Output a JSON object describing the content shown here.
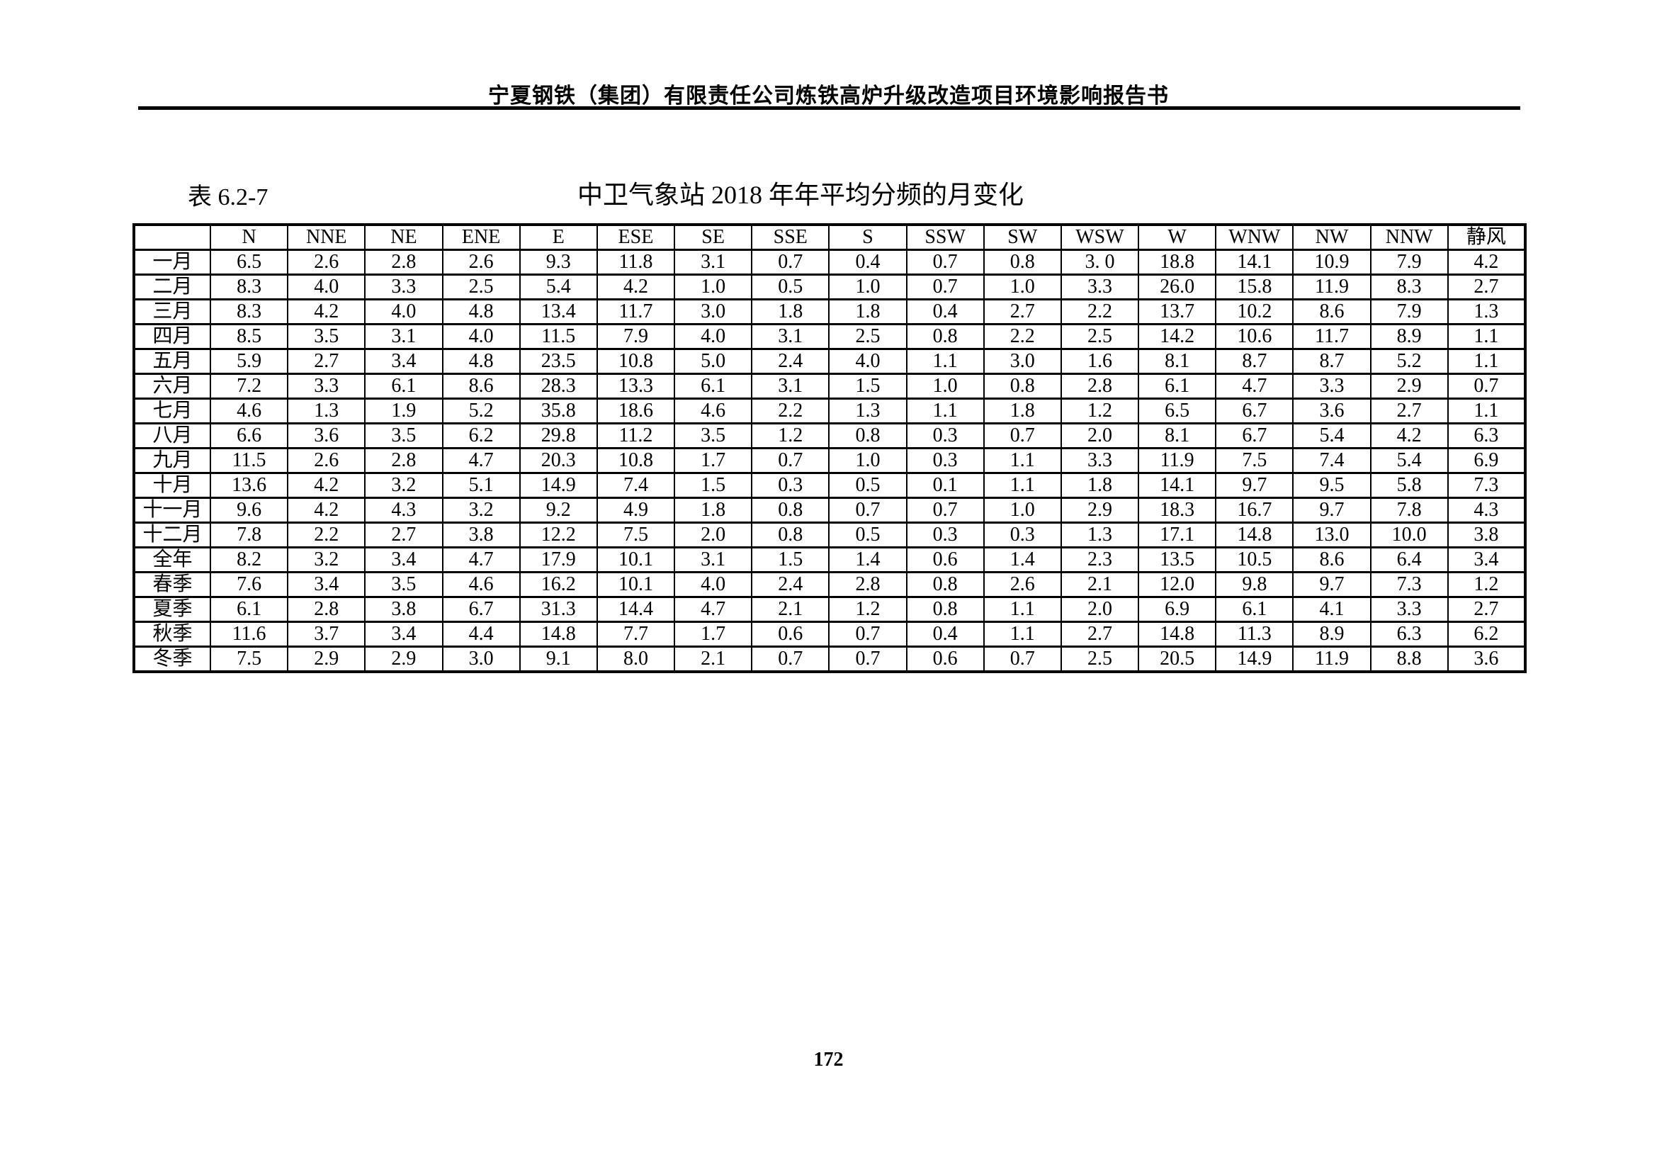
{
  "page": {
    "header_title": "宁夏钢铁（集团）有限责任公司炼铁高炉升级改造项目环境影响报告书",
    "page_number": "172"
  },
  "caption": {
    "label": "表 6.2-7",
    "title": "中卫气象站 2018 年年平均分频的月变化"
  },
  "chart_data": {
    "type": "table",
    "title": "中卫气象站 2018 年年平均分频的月变化",
    "columns": [
      "",
      "N",
      "NNE",
      "NE",
      "ENE",
      "E",
      "ESE",
      "SE",
      "SSE",
      "S",
      "SSW",
      "SW",
      "WSW",
      "W",
      "WNW",
      "NW",
      "NNW",
      "静风"
    ],
    "rows": [
      [
        "一月",
        "6.5",
        "2.6",
        "2.8",
        "2.6",
        "9.3",
        "11.8",
        "3.1",
        "0.7",
        "0.4",
        "0.7",
        "0.8",
        "3. 0",
        "18.8",
        "14.1",
        "10.9",
        "7.9",
        "4.2"
      ],
      [
        "二月",
        "8.3",
        "4.0",
        "3.3",
        "2.5",
        "5.4",
        "4.2",
        "1.0",
        "0.5",
        "1.0",
        "0.7",
        "1.0",
        "3.3",
        "26.0",
        "15.8",
        "11.9",
        "8.3",
        "2.7"
      ],
      [
        "三月",
        "8.3",
        "4.2",
        "4.0",
        "4.8",
        "13.4",
        "11.7",
        "3.0",
        "1.8",
        "1.8",
        "0.4",
        "2.7",
        "2.2",
        "13.7",
        "10.2",
        "8.6",
        "7.9",
        "1.3"
      ],
      [
        "四月",
        "8.5",
        "3.5",
        "3.1",
        "4.0",
        "11.5",
        "7.9",
        "4.0",
        "3.1",
        "2.5",
        "0.8",
        "2.2",
        "2.5",
        "14.2",
        "10.6",
        "11.7",
        "8.9",
        "1.1"
      ],
      [
        "五月",
        "5.9",
        "2.7",
        "3.4",
        "4.8",
        "23.5",
        "10.8",
        "5.0",
        "2.4",
        "4.0",
        "1.1",
        "3.0",
        "1.6",
        "8.1",
        "8.7",
        "8.7",
        "5.2",
        "1.1"
      ],
      [
        "六月",
        "7.2",
        "3.3",
        "6.1",
        "8.6",
        "28.3",
        "13.3",
        "6.1",
        "3.1",
        "1.5",
        "1.0",
        "0.8",
        "2.8",
        "6.1",
        "4.7",
        "3.3",
        "2.9",
        "0.7"
      ],
      [
        "七月",
        "4.6",
        "1.3",
        "1.9",
        "5.2",
        "35.8",
        "18.6",
        "4.6",
        "2.2",
        "1.3",
        "1.1",
        "1.8",
        "1.2",
        "6.5",
        "6.7",
        "3.6",
        "2.7",
        "1.1"
      ],
      [
        "八月",
        "6.6",
        "3.6",
        "3.5",
        "6.2",
        "29.8",
        "11.2",
        "3.5",
        "1.2",
        "0.8",
        "0.3",
        "0.7",
        "2.0",
        "8.1",
        "6.7",
        "5.4",
        "4.2",
        "6.3"
      ],
      [
        "九月",
        "11.5",
        "2.6",
        "2.8",
        "4.7",
        "20.3",
        "10.8",
        "1.7",
        "0.7",
        "1.0",
        "0.3",
        "1.1",
        "3.3",
        "11.9",
        "7.5",
        "7.4",
        "5.4",
        "6.9"
      ],
      [
        "十月",
        "13.6",
        "4.2",
        "3.2",
        "5.1",
        "14.9",
        "7.4",
        "1.5",
        "0.3",
        "0.5",
        "0.1",
        "1.1",
        "1.8",
        "14.1",
        "9.7",
        "9.5",
        "5.8",
        "7.3"
      ],
      [
        "十一月",
        "9.6",
        "4.2",
        "4.3",
        "3.2",
        "9.2",
        "4.9",
        "1.8",
        "0.8",
        "0.7",
        "0.7",
        "1.0",
        "2.9",
        "18.3",
        "16.7",
        "9.7",
        "7.8",
        "4.3"
      ],
      [
        "十二月",
        "7.8",
        "2.2",
        "2.7",
        "3.8",
        "12.2",
        "7.5",
        "2.0",
        "0.8",
        "0.5",
        "0.3",
        "0.3",
        "1.3",
        "17.1",
        "14.8",
        "13.0",
        "10.0",
        "3.8"
      ],
      [
        "全年",
        "8.2",
        "3.2",
        "3.4",
        "4.7",
        "17.9",
        "10.1",
        "3.1",
        "1.5",
        "1.4",
        "0.6",
        "1.4",
        "2.3",
        "13.5",
        "10.5",
        "8.6",
        "6.4",
        "3.4"
      ],
      [
        "春季",
        "7.6",
        "3.4",
        "3.5",
        "4.6",
        "16.2",
        "10.1",
        "4.0",
        "2.4",
        "2.8",
        "0.8",
        "2.6",
        "2.1",
        "12.0",
        "9.8",
        "9.7",
        "7.3",
        "1.2"
      ],
      [
        "夏季",
        "6.1",
        "2.8",
        "3.8",
        "6.7",
        "31.3",
        "14.4",
        "4.7",
        "2.1",
        "1.2",
        "0.8",
        "1.1",
        "2.0",
        "6.9",
        "6.1",
        "4.1",
        "3.3",
        "2.7"
      ],
      [
        "秋季",
        "11.6",
        "3.7",
        "3.4",
        "4.4",
        "14.8",
        "7.7",
        "1.7",
        "0.6",
        "0.7",
        "0.4",
        "1.1",
        "2.7",
        "14.8",
        "11.3",
        "8.9",
        "6.3",
        "6.2"
      ],
      [
        "冬季",
        "7.5",
        "2.9",
        "2.9",
        "3.0",
        "9.1",
        "8.0",
        "2.1",
        "0.7",
        "0.7",
        "0.6",
        "0.7",
        "2.5",
        "20.5",
        "14.9",
        "11.9",
        "8.8",
        "3.6"
      ]
    ]
  }
}
